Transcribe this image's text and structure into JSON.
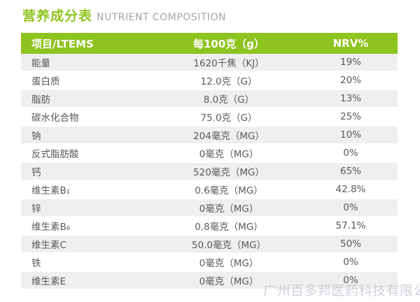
{
  "page": {
    "title_cn": "营养成分表",
    "title_en": "NUTRIENT COMPOSITION",
    "watermark": "广州百多邦医药科技有限公司"
  },
  "colors": {
    "accent_green": "#8fc31f",
    "row_alt_gray": "#efeff0",
    "body_text": "#58595b",
    "title_en_gray": "#a5a5a5",
    "watermark_gray": "#c3c8d0"
  },
  "table": {
    "headers": [
      "项目/LTEMS",
      "每100克（g）",
      "NRV%"
    ],
    "rows": [
      {
        "item": "能量",
        "per100g": "1620千焦（KJ）",
        "nrv": "19%"
      },
      {
        "item": "蛋白质",
        "per100g": "12.0克（G）",
        "nrv": "20%"
      },
      {
        "item": "脂肪",
        "per100g": "8.0克（G）",
        "nrv": "13%"
      },
      {
        "item": "碳水化合物",
        "per100g": "75.0克（G）",
        "nrv": "25%"
      },
      {
        "item": "钠",
        "per100g": "204毫克（MG）",
        "nrv": "10%"
      },
      {
        "item": "反式脂肪酸",
        "per100g": "0毫克（MG）",
        "nrv": "0%"
      },
      {
        "item": "钙",
        "per100g": "520毫克（MG）",
        "nrv": "65%"
      },
      {
        "item": "维生素B₁",
        "per100g": "0.6毫克（MG）",
        "nrv": "42.8%"
      },
      {
        "item": "锌",
        "per100g": "0毫克（MG）",
        "nrv": "0%"
      },
      {
        "item": "维生素B₆",
        "per100g": "0.8毫克（MG）",
        "nrv": "57.1%"
      },
      {
        "item": "维生素C",
        "per100g": "50.0毫克（MG）",
        "nrv": "50%"
      },
      {
        "item": "铁",
        "per100g": "0毫克（MG）",
        "nrv": "0%"
      },
      {
        "item": "维生素E",
        "per100g": "0毫克（MG）",
        "nrv": "0%"
      }
    ]
  }
}
